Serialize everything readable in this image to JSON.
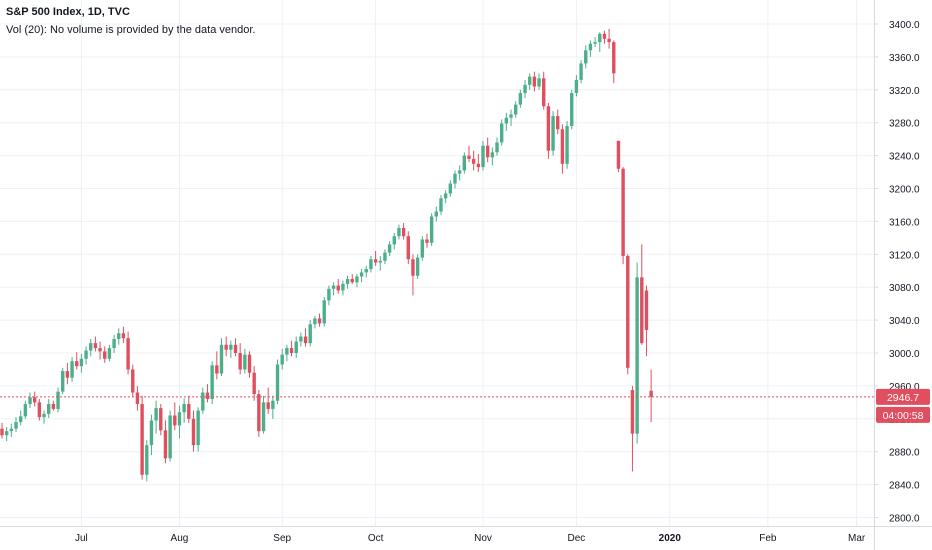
{
  "header": {
    "title": "S&P 500 Index, 1D, TVC",
    "volume_note": "Vol (20): No volume is provided by the data vendor."
  },
  "colors": {
    "up": "#4caf8a",
    "down": "#e04f5f",
    "grid": "#edf0f4",
    "axis_text": "#131722",
    "price_line": "#e04f5f"
  },
  "chart_data": {
    "type": "candlestick",
    "ylim": [
      2780,
      3420
    ],
    "yticks": [
      2800,
      2840,
      2880,
      2920,
      2960,
      3000,
      3040,
      3080,
      3120,
      3160,
      3200,
      3240,
      3280,
      3320,
      3360,
      3400
    ],
    "ytick_labels": [
      "2800.0",
      "2840.0",
      "2880.0",
      "2920.0",
      "2960.0",
      "3000.0",
      "3040.0",
      "3080.0",
      "3120.0",
      "3160.0",
      "3200.0",
      "3240.0",
      "3280.0",
      "3320.0",
      "3360.0",
      "3400.0"
    ],
    "xtick_labels": [
      "Jul",
      "Aug",
      "Sep",
      "Oct",
      "Nov",
      "Dec",
      "2020",
      "Feb",
      "Mar"
    ],
    "xtick_index": [
      17,
      38,
      60,
      80,
      103,
      123,
      143,
      164,
      183
    ],
    "last_price": 2946.7,
    "last_price_label": "2946.7",
    "countdown_label": "04:00:58",
    "grid": true,
    "candles": [
      [
        2908,
        2915,
        2896,
        2900
      ],
      [
        2900,
        2910,
        2893,
        2905
      ],
      [
        2905,
        2914,
        2898,
        2908
      ],
      [
        2908,
        2922,
        2904,
        2916
      ],
      [
        2916,
        2930,
        2912,
        2923
      ],
      [
        2923,
        2942,
        2920,
        2938
      ],
      [
        2938,
        2952,
        2933,
        2946
      ],
      [
        2946,
        2953,
        2935,
        2940
      ],
      [
        2940,
        2944,
        2918,
        2922
      ],
      [
        2922,
        2930,
        2914,
        2926
      ],
      [
        2926,
        2944,
        2921,
        2938
      ],
      [
        2938,
        2942,
        2930,
        2932
      ],
      [
        2932,
        2958,
        2928,
        2953
      ],
      [
        2953,
        2982,
        2950,
        2978
      ],
      [
        2978,
        2988,
        2962,
        2970
      ],
      [
        2970,
        2995,
        2965,
        2990
      ],
      [
        2990,
        3001,
        2980,
        2984
      ],
      [
        2984,
        2999,
        2976,
        2993
      ],
      [
        2993,
        3008,
        2986,
        3003
      ],
      [
        3003,
        3017,
        2996,
        3012
      ],
      [
        3012,
        3020,
        3002,
        3006
      ],
      [
        3006,
        3014,
        2992,
        3002
      ],
      [
        3002,
        3008,
        2988,
        2993
      ],
      [
        2993,
        3010,
        2990,
        3006
      ],
      [
        3006,
        3022,
        3000,
        3017
      ],
      [
        3017,
        3030,
        3010,
        3024
      ],
      [
        3024,
        3032,
        3012,
        3018
      ],
      [
        3018,
        3026,
        2974,
        2980
      ],
      [
        2980,
        2986,
        2946,
        2952
      ],
      [
        2952,
        2960,
        2930,
        2938
      ],
      [
        2938,
        2948,
        2846,
        2852
      ],
      [
        2852,
        2894,
        2844,
        2888
      ],
      [
        2888,
        2925,
        2876,
        2918
      ],
      [
        2918,
        2942,
        2902,
        2933
      ],
      [
        2933,
        2938,
        2900,
        2906
      ],
      [
        2906,
        2918,
        2866,
        2872
      ],
      [
        2872,
        2930,
        2868,
        2924
      ],
      [
        2924,
        2940,
        2906,
        2912
      ],
      [
        2912,
        2936,
        2896,
        2928
      ],
      [
        2928,
        2945,
        2915,
        2938
      ],
      [
        2938,
        2948,
        2915,
        2920
      ],
      [
        2920,
        2930,
        2880,
        2888
      ],
      [
        2888,
        2934,
        2880,
        2930
      ],
      [
        2930,
        2958,
        2926,
        2952
      ],
      [
        2952,
        2962,
        2940,
        2944
      ],
      [
        2944,
        2990,
        2938,
        2985
      ],
      [
        2985,
        3002,
        2968,
        2975
      ],
      [
        2975,
        3018,
        2972,
        3010
      ],
      [
        3010,
        3020,
        2996,
        3004
      ],
      [
        3004,
        3015,
        2994,
        3010
      ],
      [
        3010,
        3018,
        2996,
        3000
      ],
      [
        3000,
        3012,
        2974,
        2980
      ],
      [
        2980,
        3005,
        2975,
        2998
      ],
      [
        2998,
        3002,
        2970,
        2976
      ],
      [
        2976,
        2984,
        2942,
        2950
      ],
      [
        2950,
        2955,
        2898,
        2905
      ],
      [
        2905,
        2948,
        2902,
        2940
      ],
      [
        2940,
        2958,
        2926,
        2932
      ],
      [
        2932,
        2948,
        2920,
        2942
      ],
      [
        2942,
        2992,
        2938,
        2986
      ],
      [
        2986,
        3005,
        2980,
        2998
      ],
      [
        2998,
        3010,
        2990,
        3006
      ],
      [
        3006,
        3015,
        2996,
        3000
      ],
      [
        3000,
        3020,
        2994,
        3014
      ],
      [
        3014,
        3025,
        3008,
        3020
      ],
      [
        3020,
        3030,
        3008,
        3012
      ],
      [
        3012,
        3040,
        3008,
        3035
      ],
      [
        3035,
        3045,
        3030,
        3042
      ],
      [
        3042,
        3048,
        3032,
        3036
      ],
      [
        3036,
        3068,
        3032,
        3064
      ],
      [
        3064,
        3082,
        3058,
        3078
      ],
      [
        3078,
        3086,
        3070,
        3082
      ],
      [
        3082,
        3090,
        3072,
        3076
      ],
      [
        3076,
        3088,
        3070,
        3084
      ],
      [
        3084,
        3094,
        3078,
        3090
      ],
      [
        3090,
        3096,
        3084,
        3086
      ],
      [
        3086,
        3096,
        3080,
        3093
      ],
      [
        3093,
        3102,
        3086,
        3098
      ],
      [
        3098,
        3106,
        3092,
        3102
      ],
      [
        3102,
        3118,
        3098,
        3114
      ],
      [
        3114,
        3124,
        3106,
        3110
      ],
      [
        3110,
        3118,
        3100,
        3112
      ],
      [
        3112,
        3126,
        3108,
        3122
      ],
      [
        3122,
        3136,
        3118,
        3132
      ],
      [
        3132,
        3146,
        3126,
        3142
      ],
      [
        3142,
        3156,
        3138,
        3152
      ],
      [
        3152,
        3158,
        3138,
        3142
      ],
      [
        3142,
        3148,
        3108,
        3114
      ],
      [
        3114,
        3120,
        3070,
        3094
      ],
      [
        3094,
        3120,
        3090,
        3116
      ],
      [
        3116,
        3142,
        3112,
        3138
      ],
      [
        3138,
        3145,
        3128,
        3134
      ],
      [
        3134,
        3170,
        3130,
        3166
      ],
      [
        3166,
        3178,
        3160,
        3172
      ],
      [
        3172,
        3192,
        3168,
        3188
      ],
      [
        3188,
        3198,
        3182,
        3194
      ],
      [
        3194,
        3210,
        3190,
        3206
      ],
      [
        3206,
        3222,
        3200,
        3218
      ],
      [
        3218,
        3228,
        3210,
        3222
      ],
      [
        3222,
        3244,
        3218,
        3240
      ],
      [
        3240,
        3252,
        3232,
        3236
      ],
      [
        3236,
        3246,
        3222,
        3230
      ],
      [
        3230,
        3242,
        3220,
        3226
      ],
      [
        3226,
        3258,
        3222,
        3252
      ],
      [
        3252,
        3262,
        3232,
        3238
      ],
      [
        3238,
        3250,
        3228,
        3244
      ],
      [
        3244,
        3262,
        3240,
        3256
      ],
      [
        3256,
        3284,
        3252,
        3279
      ],
      [
        3279,
        3292,
        3270,
        3286
      ],
      [
        3286,
        3296,
        3276,
        3290
      ],
      [
        3290,
        3306,
        3286,
        3302
      ],
      [
        3302,
        3320,
        3298,
        3316
      ],
      [
        3316,
        3332,
        3310,
        3326
      ],
      [
        3326,
        3340,
        3320,
        3336
      ],
      [
        3336,
        3342,
        3318,
        3324
      ],
      [
        3324,
        3340,
        3320,
        3334
      ],
      [
        3334,
        3342,
        3296,
        3300
      ],
      [
        3300,
        3304,
        3236,
        3246
      ],
      [
        3246,
        3294,
        3240,
        3288
      ],
      [
        3288,
        3296,
        3266,
        3272
      ],
      [
        3272,
        3278,
        3218,
        3230
      ],
      [
        3230,
        3282,
        3224,
        3276
      ],
      [
        3276,
        3320,
        3272,
        3316
      ],
      [
        3316,
        3338,
        3312,
        3332
      ],
      [
        3332,
        3356,
        3328,
        3352
      ],
      [
        3352,
        3374,
        3346,
        3368
      ],
      [
        3368,
        3380,
        3360,
        3376
      ],
      [
        3376,
        3384,
        3372,
        3378
      ],
      [
        3378,
        3390,
        3366,
        3388
      ],
      [
        3388,
        3392,
        3376,
        3382
      ],
      [
        3382,
        3394,
        3370,
        3378
      ],
      [
        3378,
        3380,
        3328,
        3340
      ],
      [
        3258,
        3258,
        3220,
        3224
      ],
      [
        3224,
        3226,
        3108,
        3118
      ],
      [
        3118,
        3120,
        2974,
        2982
      ],
      [
        2955,
        2960,
        2856,
        2902
      ],
      [
        2902,
        3110,
        2890,
        3092
      ],
      [
        3092,
        3132,
        3010,
        3012
      ],
      [
        3076,
        3082,
        2996,
        3028
      ],
      [
        2954,
        2980,
        2916,
        2946.7
      ]
    ]
  }
}
